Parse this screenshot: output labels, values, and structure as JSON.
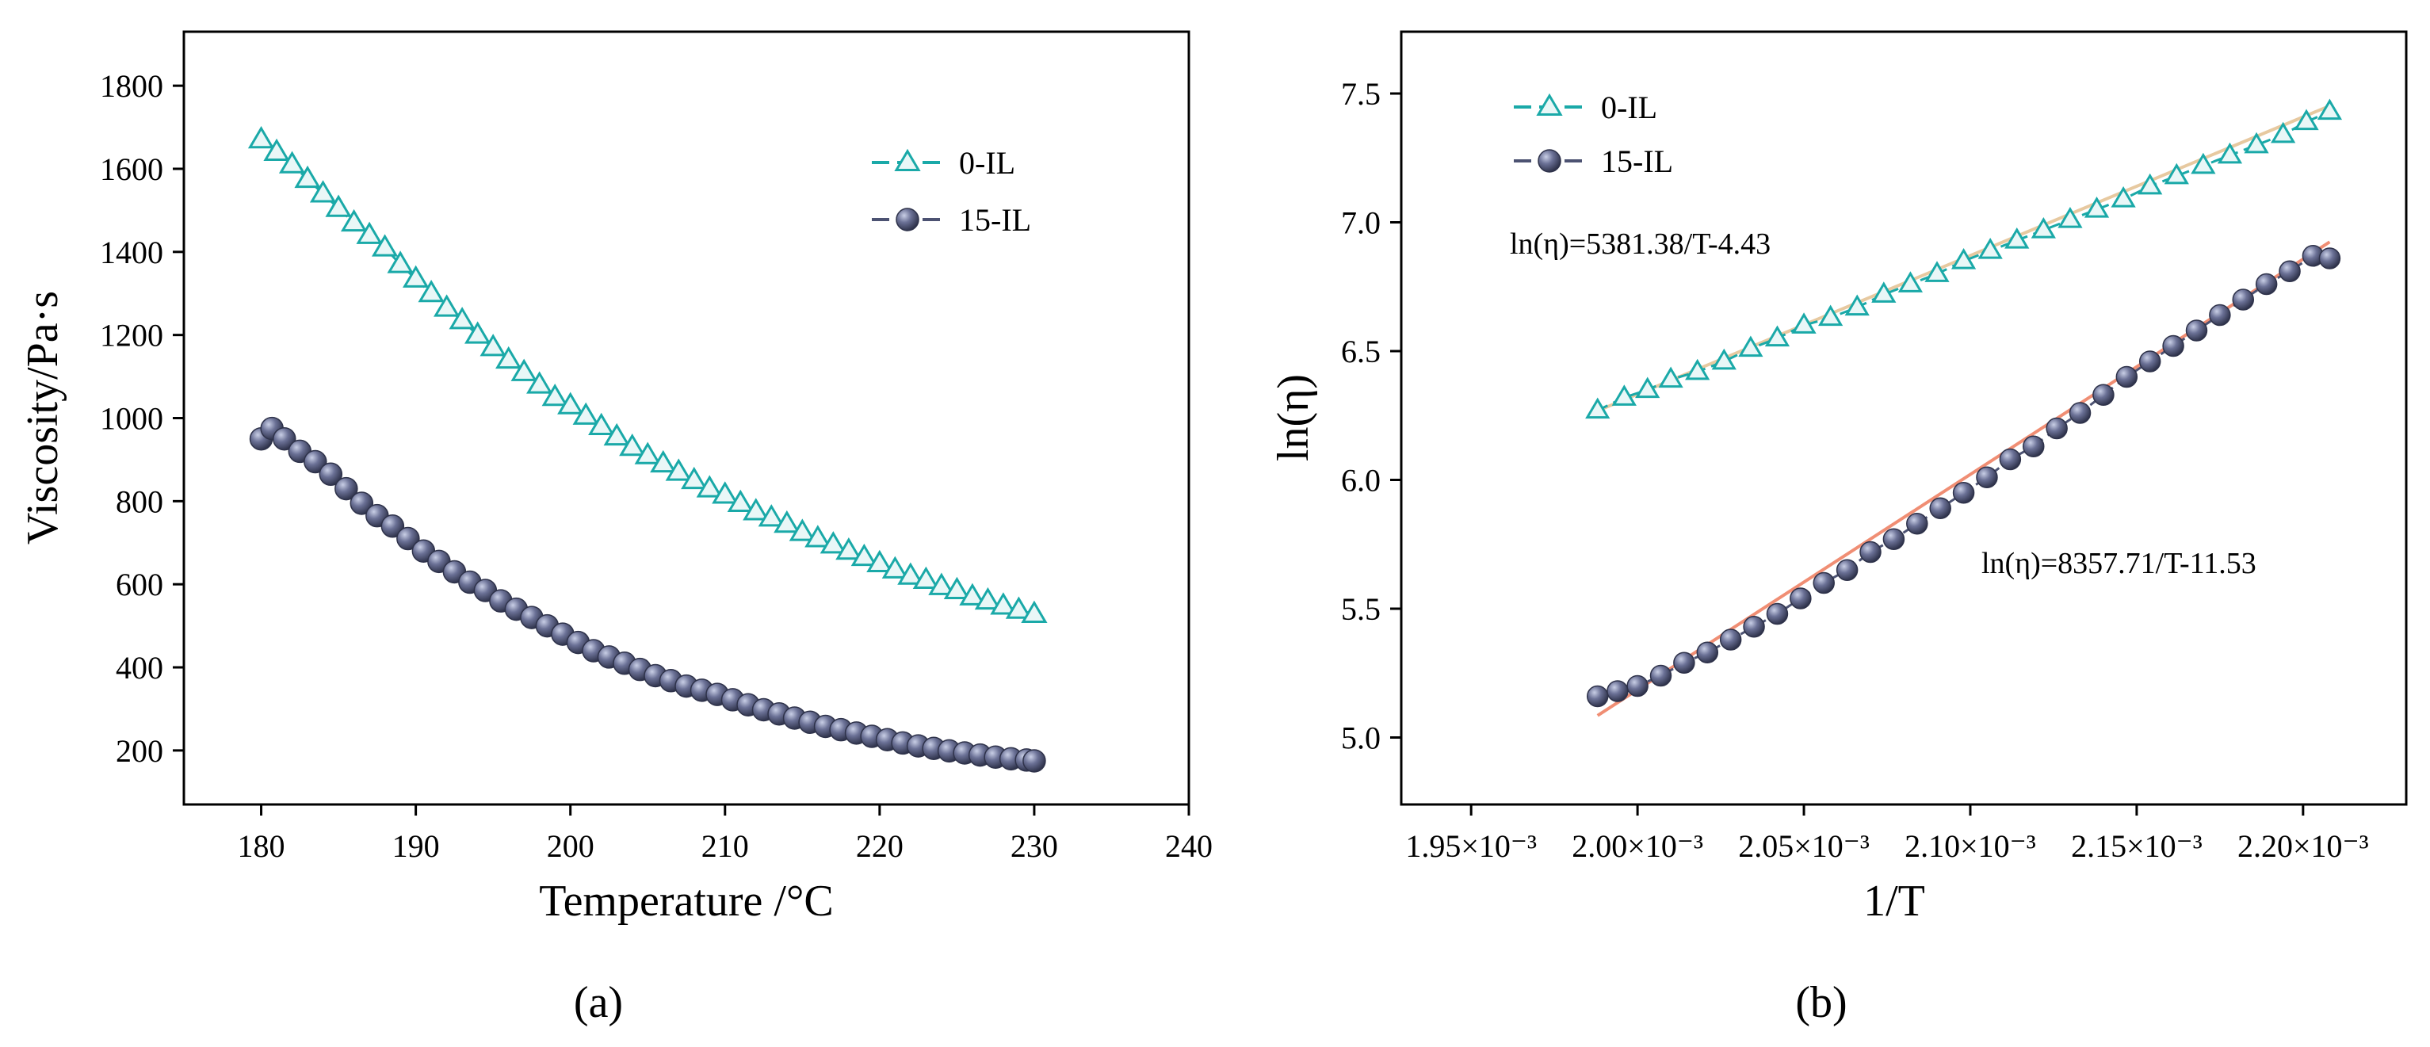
{
  "colors": {
    "series_0IL": "#1aa9a8",
    "series_15IL": "#4c5272",
    "fit_0IL": "#e7c9a0",
    "fit_15IL": "#f08e74",
    "axis": "#000000"
  },
  "panels": {
    "a": {
      "label": "(a)"
    },
    "b": {
      "label": "(b)"
    }
  },
  "chart_data": [
    {
      "id": "a",
      "type": "scatter",
      "title": "",
      "xlabel": "Temperature /°C",
      "ylabel": "Viscosity/Pa·s",
      "xlim": [
        175,
        240
      ],
      "ylim": [
        70,
        1930
      ],
      "xticks": [
        180,
        190,
        200,
        210,
        220,
        230,
        240
      ],
      "xtick_labels": [
        "180",
        "190",
        "200",
        "210",
        "220",
        "230",
        "240"
      ],
      "yticks": [
        200,
        400,
        600,
        800,
        1000,
        1200,
        1400,
        1600,
        1800
      ],
      "ytick_labels": [
        "200",
        "400",
        "600",
        "800",
        "1000",
        "1200",
        "1400",
        "1600",
        "1800"
      ],
      "legend_position": "top-right",
      "series": [
        {
          "name": "0-IL",
          "marker": "triangle",
          "x": [
            180,
            181,
            182,
            183,
            184,
            185,
            186,
            187,
            188,
            189,
            190,
            191,
            192,
            193,
            194,
            195,
            196,
            197,
            198,
            199,
            200,
            201,
            202,
            203,
            204,
            205,
            206,
            207,
            208,
            209,
            210,
            211,
            212,
            213,
            214,
            215,
            216,
            217,
            218,
            219,
            220,
            221,
            222,
            223,
            224,
            225,
            226,
            227,
            228,
            229,
            230
          ],
          "values": [
            1670,
            1640,
            1610,
            1575,
            1540,
            1505,
            1470,
            1440,
            1410,
            1370,
            1335,
            1300,
            1265,
            1235,
            1200,
            1170,
            1140,
            1110,
            1080,
            1050,
            1030,
            1005,
            980,
            955,
            930,
            910,
            890,
            870,
            850,
            830,
            815,
            795,
            775,
            760,
            745,
            725,
            710,
            695,
            680,
            665,
            650,
            635,
            620,
            610,
            595,
            585,
            570,
            560,
            548,
            538,
            528
          ]
        },
        {
          "name": "15-IL",
          "marker": "sphere",
          "x": [
            180,
            180.7,
            181.5,
            182.5,
            183.5,
            184.5,
            185.5,
            186.5,
            187.5,
            188.5,
            189.5,
            190.5,
            191.5,
            192.5,
            193.5,
            194.5,
            195.5,
            196.5,
            197.5,
            198.5,
            199.5,
            200.5,
            201.5,
            202.5,
            203.5,
            204.5,
            205.5,
            206.5,
            207.5,
            208.5,
            209.5,
            210.5,
            211.5,
            212.5,
            213.5,
            214.5,
            215.5,
            216.5,
            217.5,
            218.5,
            219.5,
            220.5,
            221.5,
            222.5,
            223.5,
            224.5,
            225.5,
            226.5,
            227.5,
            228.5,
            229.5,
            230
          ],
          "values": [
            950,
            975,
            950,
            920,
            895,
            865,
            830,
            795,
            765,
            740,
            710,
            680,
            655,
            630,
            605,
            585,
            560,
            540,
            520,
            500,
            480,
            460,
            440,
            425,
            410,
            395,
            380,
            368,
            355,
            345,
            335,
            322,
            310,
            298,
            288,
            278,
            268,
            258,
            250,
            242,
            234,
            226,
            218,
            211,
            205,
            199,
            194,
            189,
            184,
            180,
            177,
            175
          ]
        }
      ]
    },
    {
      "id": "b",
      "type": "scatter",
      "title": "",
      "xlabel": "1/T",
      "ylabel": "ln(η)",
      "xlim": [
        0.001929,
        0.002231
      ],
      "ylim": [
        4.74,
        7.74
      ],
      "xticks": [
        0.00195,
        0.002,
        0.00205,
        0.0021,
        0.00215,
        0.0022
      ],
      "xtick_labels": [
        "1.95×10⁻³",
        "2.00×10⁻³",
        "2.05×10⁻³",
        "2.10×10⁻³",
        "2.15×10⁻³",
        "2.20×10⁻³"
      ],
      "yticks": [
        5.0,
        5.5,
        6.0,
        6.5,
        7.0,
        7.5
      ],
      "ytick_labels": [
        "5.0",
        "5.5",
        "6.0",
        "6.5",
        "7.0",
        "7.5"
      ],
      "legend_position": "top-left",
      "annotations": [
        {
          "text": "ln(η)=5381.38/T-4.43"
        },
        {
          "text": "ln(η)=8357.71/T-11.53"
        }
      ],
      "fits": [
        {
          "series": "0-IL",
          "slope": 5381.38,
          "intercept": -4.43,
          "x_range": [
            0.001988,
            0.002208
          ]
        },
        {
          "series": "15-IL",
          "slope": 8357.71,
          "intercept": -11.53,
          "x_range": [
            0.001988,
            0.002208
          ]
        }
      ],
      "series": [
        {
          "name": "0-IL",
          "marker": "triangle",
          "x": [
            0.001988,
            0.001996,
            0.002003,
            0.00201,
            0.002018,
            0.002026,
            0.002034,
            0.002042,
            0.00205,
            0.002058,
            0.002066,
            0.002074,
            0.002082,
            0.00209,
            0.002098,
            0.002106,
            0.002114,
            0.002122,
            0.00213,
            0.002138,
            0.002146,
            0.002154,
            0.002162,
            0.00217,
            0.002178,
            0.002186,
            0.002194,
            0.002201,
            0.002208
          ],
          "values": [
            6.27,
            6.32,
            6.35,
            6.39,
            6.42,
            6.46,
            6.51,
            6.55,
            6.6,
            6.63,
            6.67,
            6.72,
            6.76,
            6.8,
            6.85,
            6.89,
            6.93,
            6.97,
            7.01,
            7.05,
            7.09,
            7.14,
            7.18,
            7.22,
            7.26,
            7.3,
            7.34,
            7.39,
            7.43
          ]
        },
        {
          "name": "15-IL",
          "marker": "sphere",
          "x": [
            0.001988,
            0.001994,
            0.002,
            0.002007,
            0.002014,
            0.002021,
            0.002028,
            0.002035,
            0.002042,
            0.002049,
            0.002056,
            0.002063,
            0.00207,
            0.002077,
            0.002084,
            0.002091,
            0.002098,
            0.002105,
            0.002112,
            0.002119,
            0.002126,
            0.002133,
            0.00214,
            0.002147,
            0.002154,
            0.002161,
            0.002168,
            0.002175,
            0.002182,
            0.002189,
            0.002196,
            0.002203,
            0.002208
          ],
          "values": [
            5.16,
            5.18,
            5.2,
            5.24,
            5.29,
            5.33,
            5.38,
            5.43,
            5.48,
            5.54,
            5.6,
            5.65,
            5.72,
            5.77,
            5.83,
            5.89,
            5.95,
            6.01,
            6.08,
            6.13,
            6.2,
            6.26,
            6.33,
            6.4,
            6.46,
            6.52,
            6.58,
            6.64,
            6.7,
            6.76,
            6.81,
            6.87,
            6.86
          ]
        }
      ]
    }
  ]
}
